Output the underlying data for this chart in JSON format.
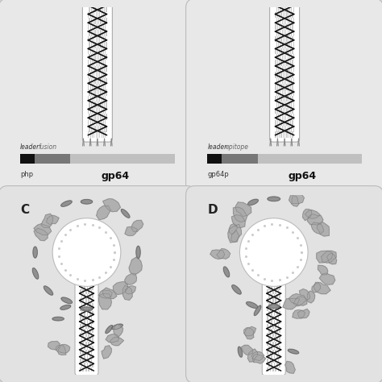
{
  "bg_outer": "#d8d8d8",
  "panel_bg_top": "#e8e8e8",
  "panel_bg_bot": "#e2e2e2",
  "rod_bg": "#e0e0e0",
  "white": "#ffffff",
  "black": "#111111",
  "gray_dark": "#555555",
  "gray_med": "#999999",
  "gray_light": "#cccccc",
  "blob_light": "#aaaaaa",
  "blob_dark": "#777777",
  "panels_top": [
    {
      "segment2": "fusion",
      "bar_label1": "php",
      "bar_label2": "gp64"
    },
    {
      "segment2": "epitope",
      "bar_label1": "gp64p",
      "bar_label2": "gp64"
    }
  ],
  "panels_bot": [
    {
      "label": "C"
    },
    {
      "label": "D"
    }
  ]
}
